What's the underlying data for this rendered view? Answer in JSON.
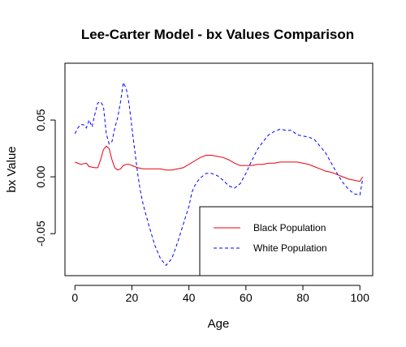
{
  "chart_data": {
    "type": "line",
    "title": "Lee-Carter Model - bx Values Comparison",
    "xlabel": "Age",
    "ylabel": "bx Value",
    "xlim": [
      -3.5,
      104.5
    ],
    "ylim": [
      -0.087,
      0.1
    ],
    "x_ticks": [
      0,
      20,
      40,
      60,
      80,
      100
    ],
    "y_ticks": [
      -0.05,
      0.0,
      0.05
    ],
    "y_tick_labels": [
      "-0.05",
      "0.00",
      "0.05"
    ],
    "legend_position": "bottom-right",
    "grid": false,
    "series": [
      {
        "name": "Black Population",
        "color": "#e8000b",
        "line_style": "solid",
        "points": [
          [
            0,
            0.013
          ],
          [
            2,
            0.011
          ],
          [
            4,
            0.012
          ],
          [
            5,
            0.009
          ],
          [
            7,
            0.008
          ],
          [
            8,
            0.008
          ],
          [
            9,
            0.015
          ],
          [
            10,
            0.024
          ],
          [
            11,
            0.027
          ],
          [
            12,
            0.025
          ],
          [
            13,
            0.015
          ],
          [
            14,
            0.008
          ],
          [
            15,
            0.006
          ],
          [
            16,
            0.007
          ],
          [
            17,
            0.01
          ],
          [
            18,
            0.011
          ],
          [
            19,
            0.011
          ],
          [
            20,
            0.01
          ],
          [
            22,
            0.008
          ],
          [
            24,
            0.007
          ],
          [
            26,
            0.007
          ],
          [
            28,
            0.007
          ],
          [
            30,
            0.007
          ],
          [
            32,
            0.006
          ],
          [
            34,
            0.006
          ],
          [
            36,
            0.007
          ],
          [
            38,
            0.008
          ],
          [
            40,
            0.011
          ],
          [
            42,
            0.014
          ],
          [
            44,
            0.017
          ],
          [
            46,
            0.019
          ],
          [
            48,
            0.019
          ],
          [
            50,
            0.018
          ],
          [
            52,
            0.017
          ],
          [
            54,
            0.015
          ],
          [
            56,
            0.012
          ],
          [
            58,
            0.01
          ],
          [
            60,
            0.01
          ],
          [
            62,
            0.01
          ],
          [
            64,
            0.011
          ],
          [
            66,
            0.011
          ],
          [
            68,
            0.012
          ],
          [
            70,
            0.012
          ],
          [
            72,
            0.013
          ],
          [
            74,
            0.013
          ],
          [
            76,
            0.013
          ],
          [
            78,
            0.013
          ],
          [
            80,
            0.012
          ],
          [
            82,
            0.011
          ],
          [
            84,
            0.009
          ],
          [
            86,
            0.007
          ],
          [
            88,
            0.005
          ],
          [
            90,
            0.004
          ],
          [
            92,
            0.002
          ],
          [
            94,
            0.0
          ],
          [
            96,
            -0.002
          ],
          [
            98,
            -0.003
          ],
          [
            100,
            -0.004
          ],
          [
            101,
            0.0
          ]
        ]
      },
      {
        "name": "White Population",
        "color": "#0000ff",
        "line_style": "dashed",
        "points": [
          [
            0,
            0.038
          ],
          [
            1,
            0.043
          ],
          [
            2,
            0.046
          ],
          [
            3,
            0.046
          ],
          [
            4,
            0.043
          ],
          [
            5,
            0.05
          ],
          [
            6,
            0.044
          ],
          [
            7,
            0.055
          ],
          [
            8,
            0.065
          ],
          [
            9,
            0.066
          ],
          [
            10,
            0.062
          ],
          [
            11,
            0.038
          ],
          [
            12,
            0.029
          ],
          [
            13,
            0.031
          ],
          [
            14,
            0.043
          ],
          [
            15,
            0.052
          ],
          [
            16,
            0.066
          ],
          [
            17,
            0.083
          ],
          [
            18,
            0.078
          ],
          [
            19,
            0.064
          ],
          [
            20,
            0.043
          ],
          [
            21,
            0.023
          ],
          [
            22,
            0.003
          ],
          [
            23,
            -0.013
          ],
          [
            24,
            -0.025
          ],
          [
            26,
            -0.043
          ],
          [
            28,
            -0.06
          ],
          [
            30,
            -0.072
          ],
          [
            32,
            -0.078
          ],
          [
            34,
            -0.072
          ],
          [
            36,
            -0.058
          ],
          [
            38,
            -0.042
          ],
          [
            40,
            -0.026
          ],
          [
            41,
            -0.014
          ],
          [
            42,
            -0.008
          ],
          [
            43,
            -0.004
          ],
          [
            44,
            -0.001
          ],
          [
            46,
            0.003
          ],
          [
            48,
            0.003
          ],
          [
            50,
            0.001
          ],
          [
            52,
            -0.003
          ],
          [
            54,
            -0.008
          ],
          [
            56,
            -0.01
          ],
          [
            58,
            -0.006
          ],
          [
            60,
            0.003
          ],
          [
            62,
            0.014
          ],
          [
            64,
            0.024
          ],
          [
            66,
            0.031
          ],
          [
            68,
            0.037
          ],
          [
            70,
            0.04
          ],
          [
            72,
            0.042
          ],
          [
            74,
            0.041
          ],
          [
            76,
            0.041
          ],
          [
            78,
            0.037
          ],
          [
            80,
            0.036
          ],
          [
            82,
            0.035
          ],
          [
            84,
            0.033
          ],
          [
            86,
            0.027
          ],
          [
            88,
            0.021
          ],
          [
            90,
            0.012
          ],
          [
            92,
            0.003
          ],
          [
            94,
            -0.005
          ],
          [
            96,
            -0.011
          ],
          [
            98,
            -0.015
          ],
          [
            100,
            -0.016
          ],
          [
            101,
            -0.002
          ]
        ]
      }
    ]
  }
}
